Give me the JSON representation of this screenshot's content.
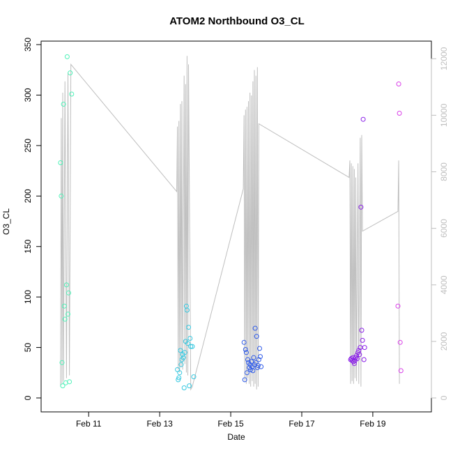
{
  "chart_data": {
    "type": "scatter",
    "title": "ATOM2 Northbound O3_CL",
    "xlabel": "Date",
    "ylabel": "O3_CL",
    "xlim": [
      "2016-02-09 22:00",
      "2016-02-20 09:00"
    ],
    "ylim": [
      0,
      350
    ],
    "y2lim": [
      0,
      12500
    ],
    "x_ticks": [
      {
        "date": "2016-02-11",
        "label": "Feb 11"
      },
      {
        "date": "2016-02-13",
        "label": "Feb 13"
      },
      {
        "date": "2016-02-15",
        "label": "Feb 15"
      },
      {
        "date": "2016-02-17",
        "label": "Feb 17"
      },
      {
        "date": "2016-02-19",
        "label": "Feb 19"
      }
    ],
    "y_ticks": [
      0,
      50,
      100,
      150,
      200,
      250,
      300,
      350
    ],
    "y2_ticks": [
      0,
      2000,
      4000,
      6000,
      8000,
      10000,
      12000
    ],
    "grid": false,
    "series": [
      {
        "color": "#4ef2b8",
        "points": [
          [
            "2016-02-10 05:00",
            233
          ],
          [
            "2016-02-10 05:30",
            200
          ],
          [
            "2016-02-10 06:00",
            35
          ],
          [
            "2016-02-10 06:30",
            12
          ],
          [
            "2016-02-10 07:00",
            291
          ],
          [
            "2016-02-10 07:30",
            91
          ],
          [
            "2016-02-10 08:00",
            78
          ],
          [
            "2016-02-10 08:30",
            15
          ],
          [
            "2016-02-10 09:00",
            112
          ],
          [
            "2016-02-10 09:30",
            338
          ],
          [
            "2016-02-10 10:00",
            83
          ],
          [
            "2016-02-10 10:30",
            104
          ],
          [
            "2016-02-10 11:00",
            16
          ],
          [
            "2016-02-10 11:30",
            322
          ],
          [
            "2016-02-10 12:30",
            301
          ]
        ]
      },
      {
        "color": "#36c8e0",
        "points": [
          [
            "2016-02-13 12:00",
            28
          ],
          [
            "2016-02-13 12:30",
            18
          ],
          [
            "2016-02-13 13:00",
            20
          ],
          [
            "2016-02-13 13:30",
            25
          ],
          [
            "2016-02-13 14:00",
            47
          ],
          [
            "2016-02-13 14:30",
            33
          ],
          [
            "2016-02-13 15:00",
            38
          ],
          [
            "2016-02-13 15:30",
            43
          ],
          [
            "2016-02-13 16:00",
            40
          ],
          [
            "2016-02-13 16:30",
            10
          ],
          [
            "2016-02-13 17:00",
            45
          ],
          [
            "2016-02-13 17:30",
            56
          ],
          [
            "2016-02-13 18:00",
            91
          ],
          [
            "2016-02-13 18:30",
            87
          ],
          [
            "2016-02-13 19:00",
            54
          ],
          [
            "2016-02-13 19:30",
            70
          ],
          [
            "2016-02-13 20:00",
            12
          ],
          [
            "2016-02-13 20:30",
            59
          ],
          [
            "2016-02-13 21:00",
            51
          ],
          [
            "2016-02-13 22:00",
            51
          ],
          [
            "2016-02-13 23:00",
            21
          ]
        ]
      },
      {
        "color": "#2f5be8",
        "points": [
          [
            "2016-02-15 09:00",
            55
          ],
          [
            "2016-02-15 09:30",
            18
          ],
          [
            "2016-02-15 10:00",
            48
          ],
          [
            "2016-02-15 10:30",
            45
          ],
          [
            "2016-02-15 11:00",
            25
          ],
          [
            "2016-02-15 11:30",
            38
          ],
          [
            "2016-02-15 12:00",
            35
          ],
          [
            "2016-02-15 12:30",
            30
          ],
          [
            "2016-02-15 13:00",
            33
          ],
          [
            "2016-02-15 13:30",
            28
          ],
          [
            "2016-02-15 14:00",
            36
          ],
          [
            "2016-02-15 14:30",
            31
          ],
          [
            "2016-02-15 15:00",
            27
          ],
          [
            "2016-02-15 15:30",
            40
          ],
          [
            "2016-02-15 16:00",
            33
          ],
          [
            "2016-02-15 16:30",
            69
          ],
          [
            "2016-02-15 17:00",
            35
          ],
          [
            "2016-02-15 17:30",
            61
          ],
          [
            "2016-02-15 18:00",
            30
          ],
          [
            "2016-02-15 18:30",
            32
          ],
          [
            "2016-02-15 19:00",
            38
          ],
          [
            "2016-02-15 19:30",
            49
          ],
          [
            "2016-02-15 20:00",
            41
          ],
          [
            "2016-02-15 20:30",
            31
          ]
        ]
      },
      {
        "color": "#8a1ee8",
        "points": [
          [
            "2016-02-18 09:00",
            38
          ],
          [
            "2016-02-18 09:30",
            39
          ],
          [
            "2016-02-18 10:00",
            37
          ],
          [
            "2016-02-18 10:30",
            40
          ],
          [
            "2016-02-18 11:00",
            36
          ],
          [
            "2016-02-18 11:30",
            34
          ],
          [
            "2016-02-18 12:00",
            37
          ],
          [
            "2016-02-18 12:30",
            40
          ],
          [
            "2016-02-18 13:00",
            42
          ],
          [
            "2016-02-18 13:30",
            39
          ],
          [
            "2016-02-18 14:00",
            45
          ],
          [
            "2016-02-18 14:30",
            47
          ],
          [
            "2016-02-18 15:00",
            43
          ],
          [
            "2016-02-18 15:30",
            50
          ],
          [
            "2016-02-18 16:00",
            189
          ],
          [
            "2016-02-18 16:30",
            67
          ],
          [
            "2016-02-18 17:00",
            57
          ],
          [
            "2016-02-18 17:30",
            276
          ],
          [
            "2016-02-18 18:00",
            38
          ],
          [
            "2016-02-18 18:30",
            50
          ]
        ]
      },
      {
        "color": "#d93fe8",
        "points": [
          [
            "2016-02-19 17:00",
            91
          ],
          [
            "2016-02-19 17:30",
            311
          ],
          [
            "2016-02-19 18:00",
            282
          ],
          [
            "2016-02-19 18:30",
            55
          ],
          [
            "2016-02-19 19:00",
            27
          ]
        ]
      }
    ],
    "secondary_trace": {
      "color": "#bebebe",
      "points": [
        [
          "2016-02-10 05:00",
          400
        ],
        [
          "2016-02-10 05:30",
          9900
        ],
        [
          "2016-02-10 06:00",
          500
        ],
        [
          "2016-02-10 06:30",
          10800
        ],
        [
          "2016-02-10 07:00",
          600
        ],
        [
          "2016-02-10 08:00",
          11200
        ],
        [
          "2016-02-10 09:00",
          700
        ],
        [
          "2016-02-10 10:00",
          11500
        ],
        [
          "2016-02-10 11:00",
          800
        ],
        [
          "2016-02-10 12:00",
          11800
        ],
        [
          "2016-02-13 11:30",
          7300
        ],
        [
          "2016-02-13 12:00",
          9600
        ],
        [
          "2016-02-13 12:30",
          1000
        ],
        [
          "2016-02-13 13:00",
          9800
        ],
        [
          "2016-02-13 13:30",
          900
        ],
        [
          "2016-02-13 14:00",
          10400
        ],
        [
          "2016-02-13 14:30",
          1100
        ],
        [
          "2016-02-13 15:00",
          10500
        ],
        [
          "2016-02-13 15:30",
          1000
        ],
        [
          "2016-02-13 16:30",
          11400
        ],
        [
          "2016-02-13 17:00",
          1200
        ],
        [
          "2016-02-13 17:30",
          11100
        ],
        [
          "2016-02-13 18:00",
          900
        ],
        [
          "2016-02-13 18:30",
          12100
        ],
        [
          "2016-02-13 19:00",
          800
        ],
        [
          "2016-02-13 19:30",
          11800
        ],
        [
          "2016-02-13 21:00",
          300
        ],
        [
          "2016-02-13 22:00",
          400
        ],
        [
          "2016-02-15 08:30",
          7400
        ],
        [
          "2016-02-15 09:00",
          10000
        ],
        [
          "2016-02-15 09:30",
          600
        ],
        [
          "2016-02-15 10:00",
          10200
        ],
        [
          "2016-02-15 10:30",
          500
        ],
        [
          "2016-02-15 11:00",
          10300
        ],
        [
          "2016-02-15 11:30",
          700
        ],
        [
          "2016-02-15 12:00",
          10500
        ],
        [
          "2016-02-15 12:30",
          500
        ],
        [
          "2016-02-15 13:00",
          10800
        ],
        [
          "2016-02-15 13:30",
          400
        ],
        [
          "2016-02-15 14:00",
          10700
        ],
        [
          "2016-02-15 14:30",
          600
        ],
        [
          "2016-02-15 15:00",
          11200
        ],
        [
          "2016-02-15 15:30",
          400
        ],
        [
          "2016-02-15 16:00",
          11600
        ],
        [
          "2016-02-15 16:30",
          500
        ],
        [
          "2016-02-15 17:00",
          11400
        ],
        [
          "2016-02-15 17:30",
          300
        ],
        [
          "2016-02-15 18:00",
          11700
        ],
        [
          "2016-02-15 18:30",
          400
        ],
        [
          "2016-02-15 19:00",
          9700
        ],
        [
          "2016-02-18 08:00",
          7800
        ],
        [
          "2016-02-18 08:30",
          8400
        ],
        [
          "2016-02-18 09:00",
          500
        ],
        [
          "2016-02-18 09:30",
          8300
        ],
        [
          "2016-02-18 10:00",
          600
        ],
        [
          "2016-02-18 10:30",
          8200
        ],
        [
          "2016-02-18 11:00",
          500
        ],
        [
          "2016-02-18 11:30",
          8100
        ],
        [
          "2016-02-18 12:00",
          700
        ],
        [
          "2016-02-18 12:30",
          7800
        ],
        [
          "2016-02-18 13:00",
          600
        ],
        [
          "2016-02-18 14:00",
          8300
        ],
        [
          "2016-02-18 14:30",
          500
        ],
        [
          "2016-02-18 15:30",
          9200
        ],
        [
          "2016-02-18 16:00",
          400
        ],
        [
          "2016-02-18 16:30",
          9300
        ],
        [
          "2016-02-18 17:00",
          5900
        ],
        [
          "2016-02-19 17:00",
          6600
        ],
        [
          "2016-02-19 17:30",
          8400
        ],
        [
          "2016-02-19 18:00",
          500
        ]
      ]
    }
  }
}
